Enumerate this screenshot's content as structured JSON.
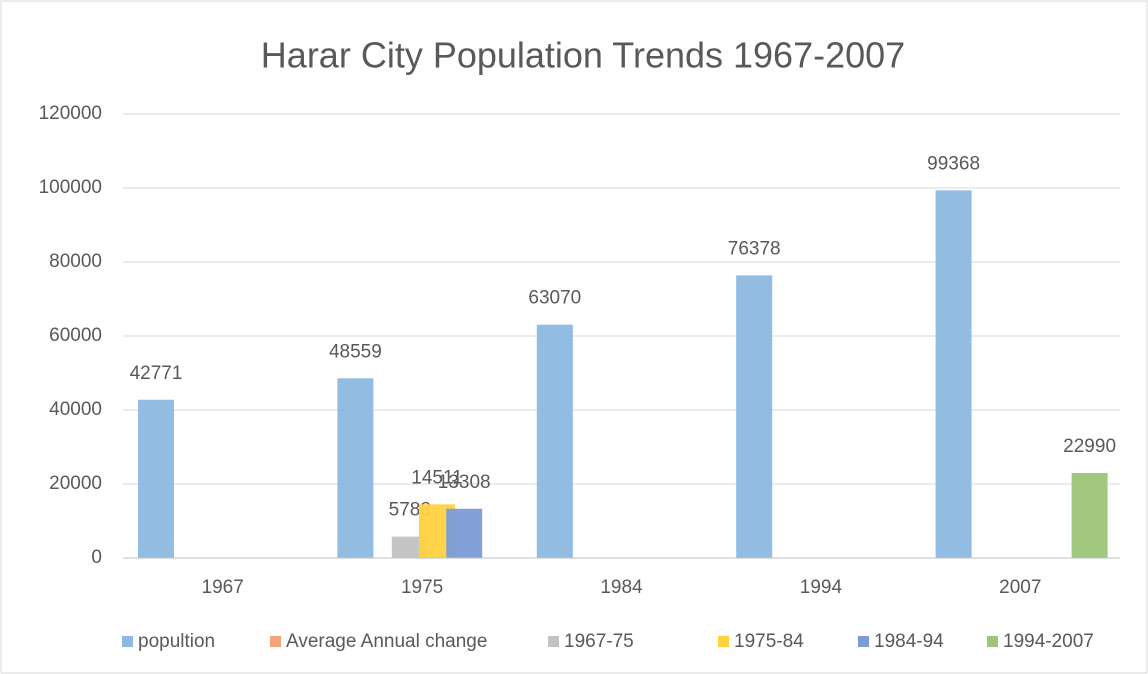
{
  "chart_data": {
    "type": "bar",
    "title": "Harar City Population Trends 1967-2007",
    "categories": [
      "1967",
      "1975",
      "1984",
      "1994",
      "2007"
    ],
    "series": [
      {
        "name": "popultion",
        "color": "#8db8e2",
        "values": [
          42771,
          48559,
          63070,
          76378,
          99368
        ]
      },
      {
        "name": "Average Annual change",
        "color": "#f4a47a",
        "values": [
          null,
          null,
          null,
          null,
          null
        ]
      },
      {
        "name": "1967-75",
        "color": "#c2c2c2",
        "values": [
          null,
          5788,
          null,
          null,
          null
        ]
      },
      {
        "name": "1975-84",
        "color": "#ffd240",
        "values": [
          null,
          14511,
          null,
          null,
          null
        ]
      },
      {
        "name": "1984-94",
        "color": "#7b9cd8",
        "values": [
          null,
          13308,
          null,
          null,
          null
        ]
      },
      {
        "name": "1994-2007",
        "color": "#9dc47a",
        "values": [
          null,
          null,
          null,
          null,
          22990
        ]
      }
    ],
    "ylim": [
      0,
      120000
    ],
    "yticks": [
      0,
      20000,
      40000,
      60000,
      80000,
      100000,
      120000
    ],
    "grid": true,
    "legend": "bottom"
  }
}
